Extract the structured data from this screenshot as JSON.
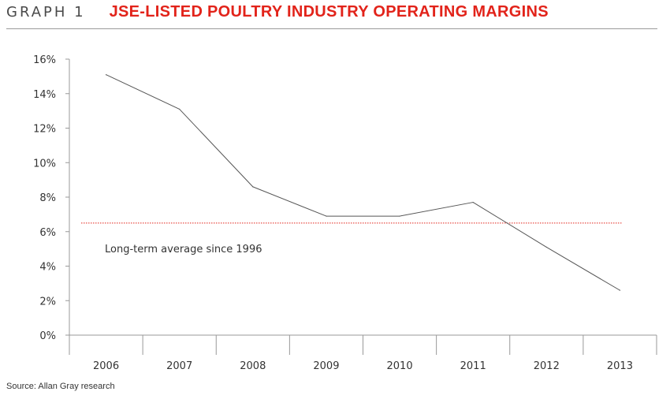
{
  "header": {
    "graph_label": "GRAPH 1",
    "title": "JSE-LISTED POULTRY INDUSTRY OPERATING MARGINS"
  },
  "source": "Source: Allan Gray research",
  "colors": {
    "title": "#e2231a",
    "series_line": "#555555",
    "average_line": "#e2231a",
    "axis": "#999999"
  },
  "chart_data": {
    "type": "line",
    "categories": [
      "2006",
      "2007",
      "2008",
      "2009",
      "2010",
      "2011",
      "2012",
      "2013"
    ],
    "series": [
      {
        "values": [
          15.1,
          13.1,
          8.6,
          6.9,
          6.9,
          7.7,
          5.1,
          2.6
        ]
      }
    ],
    "y_ticks": [
      "0%",
      "2%",
      "4%",
      "6%",
      "8%",
      "10%",
      "12%",
      "14%",
      "16%"
    ],
    "ylim": [
      0,
      16
    ],
    "y_unit": "%",
    "reference_line": {
      "label": "Long-term average since 1996",
      "value": 6.5
    },
    "grid": false
  }
}
